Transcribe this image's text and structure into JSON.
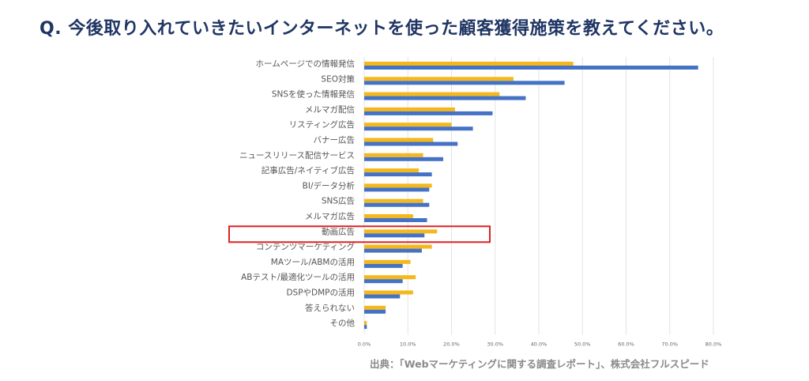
{
  "title": "Q. 今後取り入れていきたいインターネットを使った顧客獲得施策を教えてください。",
  "source": "出典：「Webマーケティングに関する調査レポート」、株式会社フルスピード",
  "colors": {
    "title": "#1f3563",
    "series_yellow": "#f5b81c",
    "series_blue": "#4472c4",
    "highlight_box": "#e02020",
    "grid": "#e3e3e3"
  },
  "chart_data": {
    "type": "bar",
    "orientation": "horizontal",
    "categories": [
      "ホームページでの情報発信",
      "SEO対策",
      "SNSを使った情報発信",
      "メルマガ配信",
      "リスティング広告",
      "バナー広告",
      "ニュースリリース配信サービス",
      "記事広告/ネイティブ広告",
      "BI/データ分析",
      "SNS広告",
      "メルマガ広告",
      "動画広告",
      "コンテンツマーケティング",
      "MAツール/ABMの活用",
      "ABテスト/最適化ツールの活用",
      "DSPやDMPの活用",
      "答えられない",
      "その他"
    ],
    "series": [
      {
        "color": "#f5b81c",
        "values": [
          47.9,
          34.2,
          31.0,
          20.8,
          20.0,
          15.8,
          13.5,
          12.5,
          15.5,
          13.5,
          11.2,
          16.7,
          15.5,
          10.6,
          11.8,
          11.2,
          4.9,
          0.6
        ]
      },
      {
        "color": "#4472c4",
        "values": [
          76.5,
          45.9,
          37.0,
          29.4,
          24.9,
          21.4,
          18.1,
          15.5,
          14.9,
          14.9,
          14.4,
          13.8,
          13.2,
          8.8,
          8.8,
          8.2,
          4.9,
          0.6
        ]
      }
    ],
    "xlim": [
      0,
      80
    ],
    "x_ticks": [
      "0.0%",
      "10.0%",
      "20.0%",
      "30.0%",
      "40.0%",
      "50.0%",
      "60.0%",
      "70.0%",
      "80.0%"
    ],
    "grid": true,
    "legend": "none",
    "highlight_category": "動画広告"
  }
}
